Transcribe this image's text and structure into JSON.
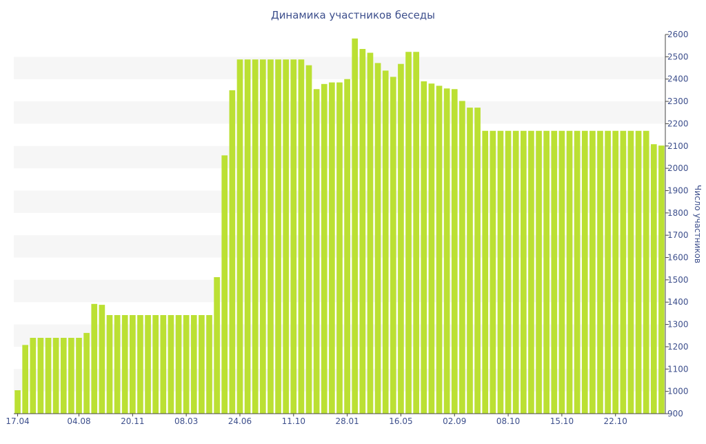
{
  "chart_data": {
    "type": "bar",
    "title": "Динамика участников беседы",
    "ylabel": "Число участников",
    "xlabel": "",
    "ylim": [
      900,
      2600
    ],
    "yticks": [
      900,
      1000,
      1100,
      1200,
      1300,
      1400,
      1500,
      1600,
      1700,
      1800,
      1900,
      2000,
      2100,
      2200,
      2300,
      2400,
      2500,
      2600
    ],
    "y_axis_side": "right",
    "grid": "alternating horizontal bands",
    "x_tick_labels": [
      {
        "index": 0,
        "label": "17.04"
      },
      {
        "index": 8,
        "label": "04.08"
      },
      {
        "index": 15,
        "label": "20.11"
      },
      {
        "index": 22,
        "label": "08.03"
      },
      {
        "index": 29,
        "label": "24.06"
      },
      {
        "index": 36,
        "label": "11.10"
      },
      {
        "index": 43,
        "label": "28.01"
      },
      {
        "index": 50,
        "label": "16.05"
      },
      {
        "index": 57,
        "label": "02.09"
      },
      {
        "index": 64,
        "label": "08.10"
      },
      {
        "index": 71,
        "label": "15.10"
      },
      {
        "index": 78,
        "label": "22.10"
      }
    ],
    "series": [
      {
        "color": "#bbe033",
        "values": [
          1005,
          1208,
          1240,
          1240,
          1240,
          1240,
          1240,
          1240,
          1240,
          1262,
          1392,
          1388,
          1342,
          1342,
          1342,
          1342,
          1342,
          1342,
          1342,
          1342,
          1342,
          1342,
          1342,
          1342,
          1342,
          1342,
          1512,
          2058,
          2350,
          2488,
          2488,
          2488,
          2488,
          2488,
          2488,
          2488,
          2488,
          2488,
          2462,
          2355,
          2378,
          2385,
          2385,
          2400,
          2582,
          2535,
          2518,
          2472,
          2438,
          2410,
          2468,
          2522,
          2522,
          2390,
          2380,
          2370,
          2358,
          2355,
          2302,
          2272,
          2272,
          2168,
          2168,
          2168,
          2168,
          2168,
          2168,
          2168,
          2168,
          2168,
          2168,
          2168,
          2168,
          2168,
          2168,
          2168,
          2168,
          2168,
          2168,
          2168,
          2168,
          2168,
          2168,
          2108,
          2102
        ]
      }
    ]
  }
}
